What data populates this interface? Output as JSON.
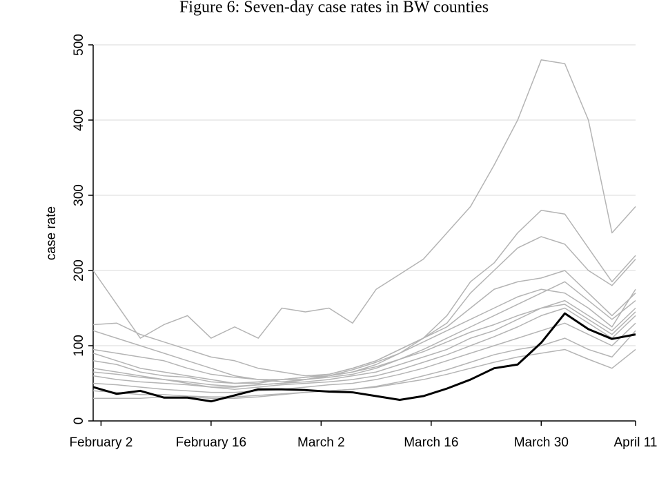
{
  "chart_data": {
    "type": "line",
    "title": "Figure 6: Seven-day case rates in BW counties",
    "ylabel": "case rate",
    "x": [
      32,
      35,
      38,
      41,
      44,
      47,
      50,
      53,
      56,
      59,
      62,
      65,
      68,
      71,
      74,
      77,
      80,
      83,
      86,
      89,
      92,
      95,
      98,
      101
    ],
    "xlim": [
      32,
      101
    ],
    "xticks": [
      {
        "value": 33,
        "label": "February 2"
      },
      {
        "value": 47,
        "label": "February 16"
      },
      {
        "value": 61,
        "label": "March 2"
      },
      {
        "value": 75,
        "label": "March 16"
      },
      {
        "value": 89,
        "label": "March 30"
      },
      {
        "value": 101,
        "label": "April 11"
      }
    ],
    "ylim": [
      0,
      500
    ],
    "yticks": [
      0,
      100,
      200,
      300,
      400,
      500
    ],
    "grid": true,
    "series": [
      {
        "color": "#b4b4b4",
        "values": [
          200,
          155,
          110,
          128,
          140,
          110,
          125,
          110,
          150,
          145,
          150,
          130,
          175,
          195,
          215,
          250,
          285,
          340,
          400,
          480,
          475,
          400,
          250,
          285
        ]
      },
      {
        "color": "#b4b4b4",
        "values": [
          90,
          80,
          70,
          65,
          60,
          55,
          50,
          50,
          55,
          55,
          60,
          65,
          75,
          90,
          110,
          140,
          185,
          210,
          250,
          280,
          275,
          230,
          185,
          220
        ]
      },
      {
        "color": "#b4b4b4",
        "values": [
          80,
          75,
          65,
          60,
          58,
          52,
          50,
          52,
          55,
          58,
          62,
          70,
          80,
          95,
          110,
          130,
          170,
          200,
          230,
          245,
          235,
          200,
          180,
          215
        ]
      },
      {
        "color": "#b4b4b4",
        "values": [
          128,
          130,
          115,
          105,
          95,
          85,
          80,
          70,
          65,
          60,
          62,
          70,
          80,
          95,
          110,
          125,
          150,
          175,
          185,
          190,
          200,
          170,
          140,
          170
        ]
      },
      {
        "color": "#b4b4b4",
        "values": [
          120,
          110,
          100,
          90,
          80,
          70,
          60,
          55,
          52,
          55,
          58,
          62,
          70,
          82,
          95,
          110,
          125,
          140,
          155,
          170,
          185,
          160,
          135,
          160
        ]
      },
      {
        "color": "#b4b4b4",
        "values": [
          70,
          65,
          60,
          55,
          50,
          45,
          45,
          48,
          50,
          52,
          55,
          60,
          65,
          75,
          85,
          95,
          110,
          120,
          135,
          150,
          160,
          140,
          120,
          150
        ]
      },
      {
        "color": "#b4b4b4",
        "values": [
          60,
          55,
          52,
          50,
          48,
          45,
          42,
          45,
          48,
          50,
          52,
          55,
          60,
          68,
          78,
          88,
          100,
          112,
          125,
          140,
          150,
          130,
          110,
          140
        ]
      },
      {
        "color": "#b4b4b4",
        "values": [
          50,
          48,
          45,
          42,
          40,
          38,
          38,
          40,
          42,
          45,
          48,
          50,
          55,
          62,
          70,
          80,
          90,
          100,
          110,
          120,
          130,
          115,
          100,
          130
        ]
      },
      {
        "color": "#b4b4b4",
        "values": [
          40,
          38,
          35,
          35,
          33,
          32,
          32,
          34,
          36,
          38,
          40,
          42,
          46,
          52,
          60,
          68,
          78,
          88,
          95,
          100,
          110,
          95,
          85,
          120
        ]
      },
      {
        "color": "#b4b4b4",
        "values": [
          95,
          90,
          85,
          80,
          70,
          62,
          58,
          55,
          55,
          58,
          60,
          65,
          72,
          82,
          92,
          105,
          118,
          128,
          140,
          150,
          155,
          135,
          115,
          145
        ]
      },
      {
        "color": "#b4b4b4",
        "values": [
          30,
          30,
          30,
          32,
          32,
          30,
          30,
          32,
          35,
          38,
          40,
          42,
          45,
          50,
          55,
          62,
          70,
          78,
          85,
          90,
          95,
          82,
          70,
          95
        ]
      },
      {
        "color": "#b4b4b4",
        "values": [
          65,
          62,
          58,
          55,
          52,
          48,
          46,
          48,
          50,
          55,
          60,
          68,
          78,
          90,
          105,
          120,
          135,
          150,
          165,
          175,
          170,
          150,
          125,
          175
        ]
      },
      {
        "color": "#000000",
        "values": [
          45,
          36,
          40,
          31,
          31,
          26,
          34,
          42,
          42,
          41,
          39,
          38,
          33,
          28,
          33,
          43,
          55,
          70,
          75,
          104,
          143,
          122,
          109,
          115
        ]
      }
    ]
  }
}
